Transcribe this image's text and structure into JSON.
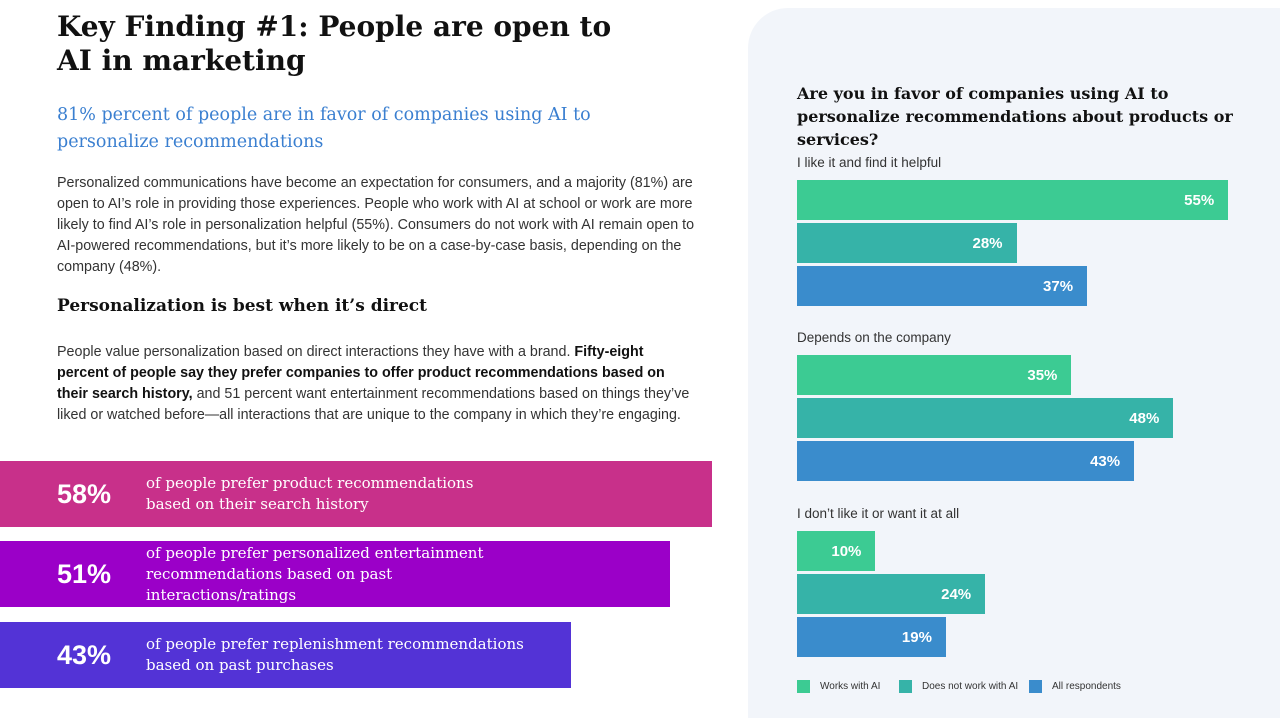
{
  "title": "Key Finding #1: People are open to AI in marketing",
  "subtitle": "81% percent of people are in favor of companies using AI to personalize recommendations",
  "para1": "Personalized communications have become an expectation for consumers, and a majority (81%) are open to AI’s role in providing those experiences. People who work with AI at school or work are more likely to find AI’s role in personalization helpful (55%). Consumers do not work with AI remain open to AI-powered recommendations, but it’s more likely to be on a case-by-case basis, depending on the company (48%).",
  "heading2": "Personalization is best when it’s direct",
  "para2": {
    "lead": "People value personalization based on direct interactions they have with a brand. ",
    "bold": "Fifty-eight percent of people say they prefer companies to offer product recommendations based on their search history,",
    "tail": " and 51 percent want entertainment recommendations based on things they’ve liked or watched before—all interactions that are unique to the company in which they’re engaging."
  },
  "stats": [
    {
      "pct": "58%",
      "text": "of people prefer product recommendations based on their search history",
      "color": "#c8308a"
    },
    {
      "pct": "51%",
      "text": "of people prefer personalized entertainment recommendations based on past interactions/ratings",
      "color": "#9b00c8"
    },
    {
      "pct": "43%",
      "text": "of people prefer replenishment recommendations based on past purchases",
      "color": "#5333d6"
    }
  ],
  "chart_data": {
    "type": "bar",
    "orientation": "horizontal",
    "title": "Are you in favor of companies using AI to personalize recommendations about products or services?",
    "categories": [
      "I like it and find it helpful",
      "Depends on the company",
      "I don’t like it or want it at all"
    ],
    "series": [
      {
        "name": "Works with AI",
        "color": "#3ccb93",
        "values": [
          55,
          35,
          10
        ],
        "labels": [
          "55%",
          "35%",
          "10%"
        ]
      },
      {
        "name": "Does not work with AI",
        "color": "#36b3a8",
        "values": [
          28,
          48,
          24
        ],
        "labels": [
          "28%",
          "48%",
          "24%"
        ]
      },
      {
        "name": "All respondents",
        "color": "#3a8ccc",
        "values": [
          37,
          43,
          19
        ],
        "labels": [
          "37%",
          "43%",
          "19%"
        ]
      }
    ],
    "legend": "bottom"
  }
}
